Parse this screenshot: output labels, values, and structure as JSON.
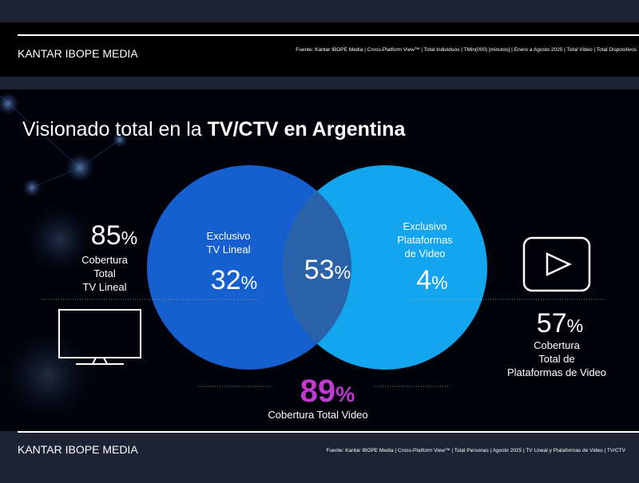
{
  "header": {
    "brand": "KANTAR IBOPE MEDIA",
    "source": "Fuente: Kantar IBOPE Media | Cross-Platform View™ | Total Individuos | TMin(000) [minutos] | Enero a Agosto 2025 | Total Video | Total Dispositivos"
  },
  "title": {
    "regular": "Visionado total en la ",
    "bold": "TV/CTV en Argentina"
  },
  "left_stat": {
    "value": "85",
    "unit": "%",
    "label_lines": [
      "Cobertura",
      "Total",
      "TV Lineal"
    ]
  },
  "venn": {
    "left": {
      "label_lines": [
        "Exclusivo",
        "TV Lineal"
      ],
      "value": "32",
      "unit": "%"
    },
    "overlap": {
      "value": "53",
      "unit": "%"
    },
    "right": {
      "label_lines": [
        "Exclusivo",
        "Plataformas",
        "de Video"
      ],
      "value": "4",
      "unit": "%"
    }
  },
  "right_stat": {
    "value": "57",
    "unit": "%",
    "label_lines": [
      "Cobertura",
      "Total de",
      "Plataformas de Video"
    ]
  },
  "bottom_stat": {
    "value": "89",
    "unit": "%",
    "label": "Cobertura Total Video"
  },
  "footer": {
    "brand": "KANTAR IBOPE MEDIA",
    "source": "Fuente: Kantar IBOPE Media | Cross-Platform View™ | Total Personas | Agosto 2025 | TV Lineal y Plataformas de Video | TV/CTV"
  }
}
